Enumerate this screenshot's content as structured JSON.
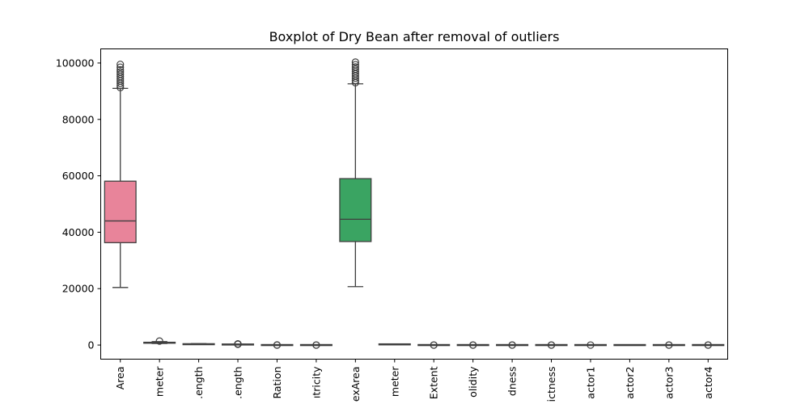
{
  "chart_data": {
    "type": "boxplot",
    "title": "Boxplot of Dry Bean after removal of outliers",
    "xlabel": "",
    "ylabel": "",
    "ylim": [
      -5000,
      105000
    ],
    "y_ticks": [
      0,
      20000,
      40000,
      60000,
      80000,
      100000
    ],
    "y_tick_labels": [
      "0",
      "20000",
      "40000",
      "60000",
      "80000",
      "100000"
    ],
    "grid": false,
    "categories": [
      {
        "label": "Area",
        "color": "#e8849a",
        "whisker_low": 20400,
        "q1": 36300,
        "median": 44000,
        "q3": 58100,
        "whisker_high": 91000,
        "outliers": [
          91300,
          92000,
          92800,
          93600,
          94400,
          95200,
          96000,
          96800,
          97600,
          98500,
          99500
        ]
      },
      {
        "label": "meter",
        "color": "#dd8a4b",
        "whisker_low": 540,
        "q1": 700,
        "median": 780,
        "q3": 940,
        "whisker_high": 1240,
        "outliers": [
          1400
        ]
      },
      {
        "label": ".ength",
        "color": "#c99a41",
        "whisker_low": 200,
        "q1": 250,
        "median": 300,
        "q3": 360,
        "whisker_high": 510,
        "outliers": []
      },
      {
        "label": ".ength",
        "color": "#a8a23b",
        "whisker_low": 140,
        "q1": 175,
        "median": 190,
        "q3": 220,
        "whisker_high": 290,
        "outliers": [
          300,
          330,
          360,
          400
        ]
      },
      {
        "label": "Ration",
        "color": "#7aab3a",
        "whisker_low": 1.1,
        "q1": 1.4,
        "median": 1.5,
        "q3": 1.7,
        "whisker_high": 2.2,
        "outliers": [
          2.3,
          2.4
        ]
      },
      {
        "label": "ıtricity",
        "color": "#3cb042",
        "whisker_low": 0.5,
        "q1": 0.7,
        "median": 0.76,
        "q3": 0.81,
        "whisker_high": 0.95,
        "outliers": [
          0.3,
          0.4
        ]
      },
      {
        "label": "exArea",
        "color": "#3aa462",
        "whisker_low": 20700,
        "q1": 36700,
        "median": 44600,
        "q3": 59000,
        "whisker_high": 92600,
        "outliers": [
          93000,
          93800,
          94600,
          95400,
          96200,
          97000,
          97800,
          98600,
          99400,
          100300
        ]
      },
      {
        "label": "meter",
        "color": "#38a382",
        "whisker_low": 160,
        "q1": 215,
        "median": 235,
        "q3": 270,
        "whisker_high": 340,
        "outliers": []
      },
      {
        "label": "Extent",
        "color": "#36a399",
        "whisker_low": 0.6,
        "q1": 0.72,
        "median": 0.76,
        "q3": 0.79,
        "whisker_high": 0.87,
        "outliers": [
          0.55,
          0.6
        ]
      },
      {
        "label": "olidity",
        "color": "#38a2b0",
        "whisker_low": 0.97,
        "q1": 0.98,
        "median": 0.99,
        "q3": 0.99,
        "whisker_high": 1.0,
        "outliers": [
          0.95,
          0.96
        ]
      },
      {
        "label": "dness",
        "color": "#3b9fc8",
        "whisker_low": 0.73,
        "q1": 0.83,
        "median": 0.88,
        "q3": 0.92,
        "whisker_high": 0.99,
        "outliers": [
          0.7,
          0.72
        ]
      },
      {
        "label": "ictness",
        "color": "#6e95e0",
        "whisker_low": 0.7,
        "q1": 0.76,
        "median": 0.8,
        "q3": 0.83,
        "whisker_high": 0.96,
        "outliers": [
          0.65,
          0.68
        ]
      },
      {
        "label": "actor1",
        "color": "#a189e6",
        "whisker_low": 0.004,
        "q1": 0.006,
        "median": 0.0066,
        "q3": 0.0073,
        "whisker_high": 0.0093,
        "outliers": [
          0.0098
        ]
      },
      {
        "label": "actor2",
        "color": "#c97fe3",
        "whisker_low": 0.0007,
        "q1": 0.0012,
        "median": 0.0017,
        "q3": 0.0021,
        "whisker_high": 0.0035,
        "outliers": []
      },
      {
        "label": "actor3",
        "color": "#e378cf",
        "whisker_low": 0.5,
        "q1": 0.58,
        "median": 0.64,
        "q3": 0.7,
        "whisker_high": 0.9,
        "outliers": [
          0.95,
          0.97
        ]
      },
      {
        "label": "actor4",
        "color": "#e87fb0",
        "whisker_low": 0.99,
        "q1": 0.993,
        "median": 0.996,
        "q3": 0.998,
        "whisker_high": 1.0,
        "outliers": [
          0.95,
          0.97
        ]
      }
    ]
  }
}
